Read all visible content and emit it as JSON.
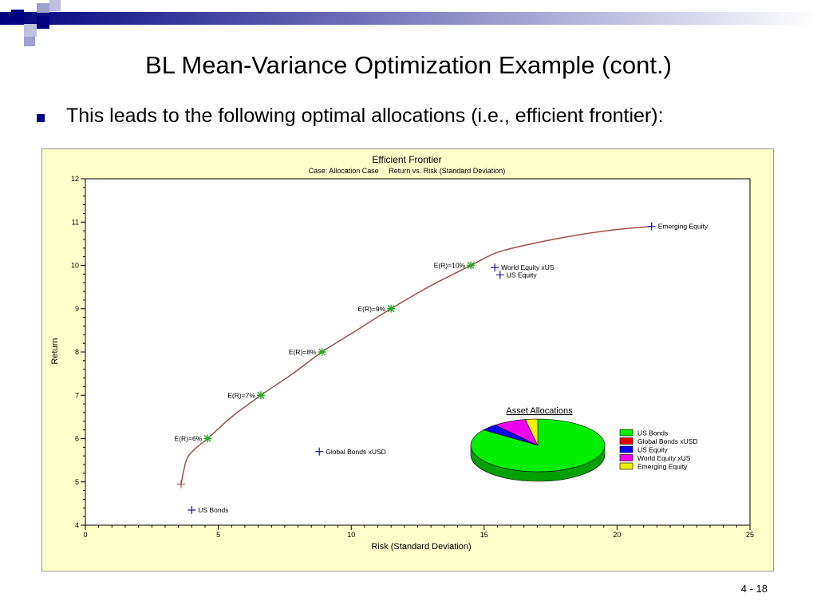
{
  "slide": {
    "title": "BL Mean-Variance Optimization Example (cont.)",
    "bullet": "This leads to the following optimal allocations (i.e., efficient frontier):",
    "page_number": "4 - 18"
  },
  "colors": {
    "banner_dark": "#000080",
    "banner_light": "#a0a0d0",
    "panel_bg": "#ffffcc",
    "frontier_line": "#a0504a",
    "frontier_marker": "#22aa22",
    "asset_marker": "#1a1a9a"
  },
  "chart_data": [
    {
      "type": "line",
      "title": "Efficient Frontier",
      "subtitle": "Case: Allocation Case     Return vs. Risk (Standard Deviation)",
      "xlabel": "Risk (Standard Deviation)",
      "ylabel": "Return",
      "xlim": [
        0,
        25
      ],
      "ylim": [
        4,
        12
      ],
      "xticks": [
        0,
        5,
        10,
        15,
        20,
        25
      ],
      "yticks": [
        4,
        5,
        6,
        7,
        8,
        9,
        10,
        11,
        12
      ],
      "grid": false,
      "frontier": {
        "x": [
          3.6,
          3.8,
          4.1,
          4.6,
          5.5,
          6.6,
          7.8,
          8.9,
          10.2,
          11.5,
          12.9,
          14.5,
          15.5,
          16.8,
          18.5,
          20.0,
          21.3
        ],
        "y": [
          4.95,
          5.5,
          5.75,
          6.0,
          6.5,
          7.0,
          7.5,
          8.0,
          8.5,
          9.0,
          9.5,
          10.0,
          10.3,
          10.5,
          10.7,
          10.83,
          10.9
        ]
      },
      "frontier_points": [
        {
          "label": "E(R)=6%",
          "x": 4.6,
          "y": 6.0
        },
        {
          "label": "E(R)=7%",
          "x": 6.6,
          "y": 7.0
        },
        {
          "label": "E(R)=8%",
          "x": 8.9,
          "y": 8.0
        },
        {
          "label": "E(R)=9%",
          "x": 11.5,
          "y": 9.0
        },
        {
          "label": "E(R)=10%",
          "x": 14.5,
          "y": 10.0
        }
      ],
      "start_point": {
        "x": 3.6,
        "y": 4.95
      },
      "assets": [
        {
          "label": "US Bonds",
          "x": 4.0,
          "y": 4.35
        },
        {
          "label": "Global Bonds xUSD",
          "x": 8.8,
          "y": 5.7
        },
        {
          "label": "US Equity",
          "x": 15.6,
          "y": 9.78
        },
        {
          "label": "World Equity xUS",
          "x": 15.4,
          "y": 9.95
        },
        {
          "label": "Emerging Equity",
          "x": 21.3,
          "y": 10.9
        }
      ]
    },
    {
      "type": "pie",
      "title": "Asset Allocations",
      "legend_position": "right",
      "slices": [
        {
          "label": "US Bonds",
          "value": 85,
          "color": "#00ee00",
          "side": "#00a000"
        },
        {
          "label": "Global Bonds xUSD",
          "value": 0,
          "color": "#ee0000",
          "side": "#a00000"
        },
        {
          "label": "US Equity",
          "value": 4,
          "color": "#0000ee",
          "side": "#0000a0"
        },
        {
          "label": "World Equity xUS",
          "value": 8,
          "color": "#ee00ee",
          "side": "#a000a0"
        },
        {
          "label": "Emerging Equity",
          "value": 3,
          "color": "#eeee00",
          "side": "#a0a000"
        }
      ]
    }
  ]
}
